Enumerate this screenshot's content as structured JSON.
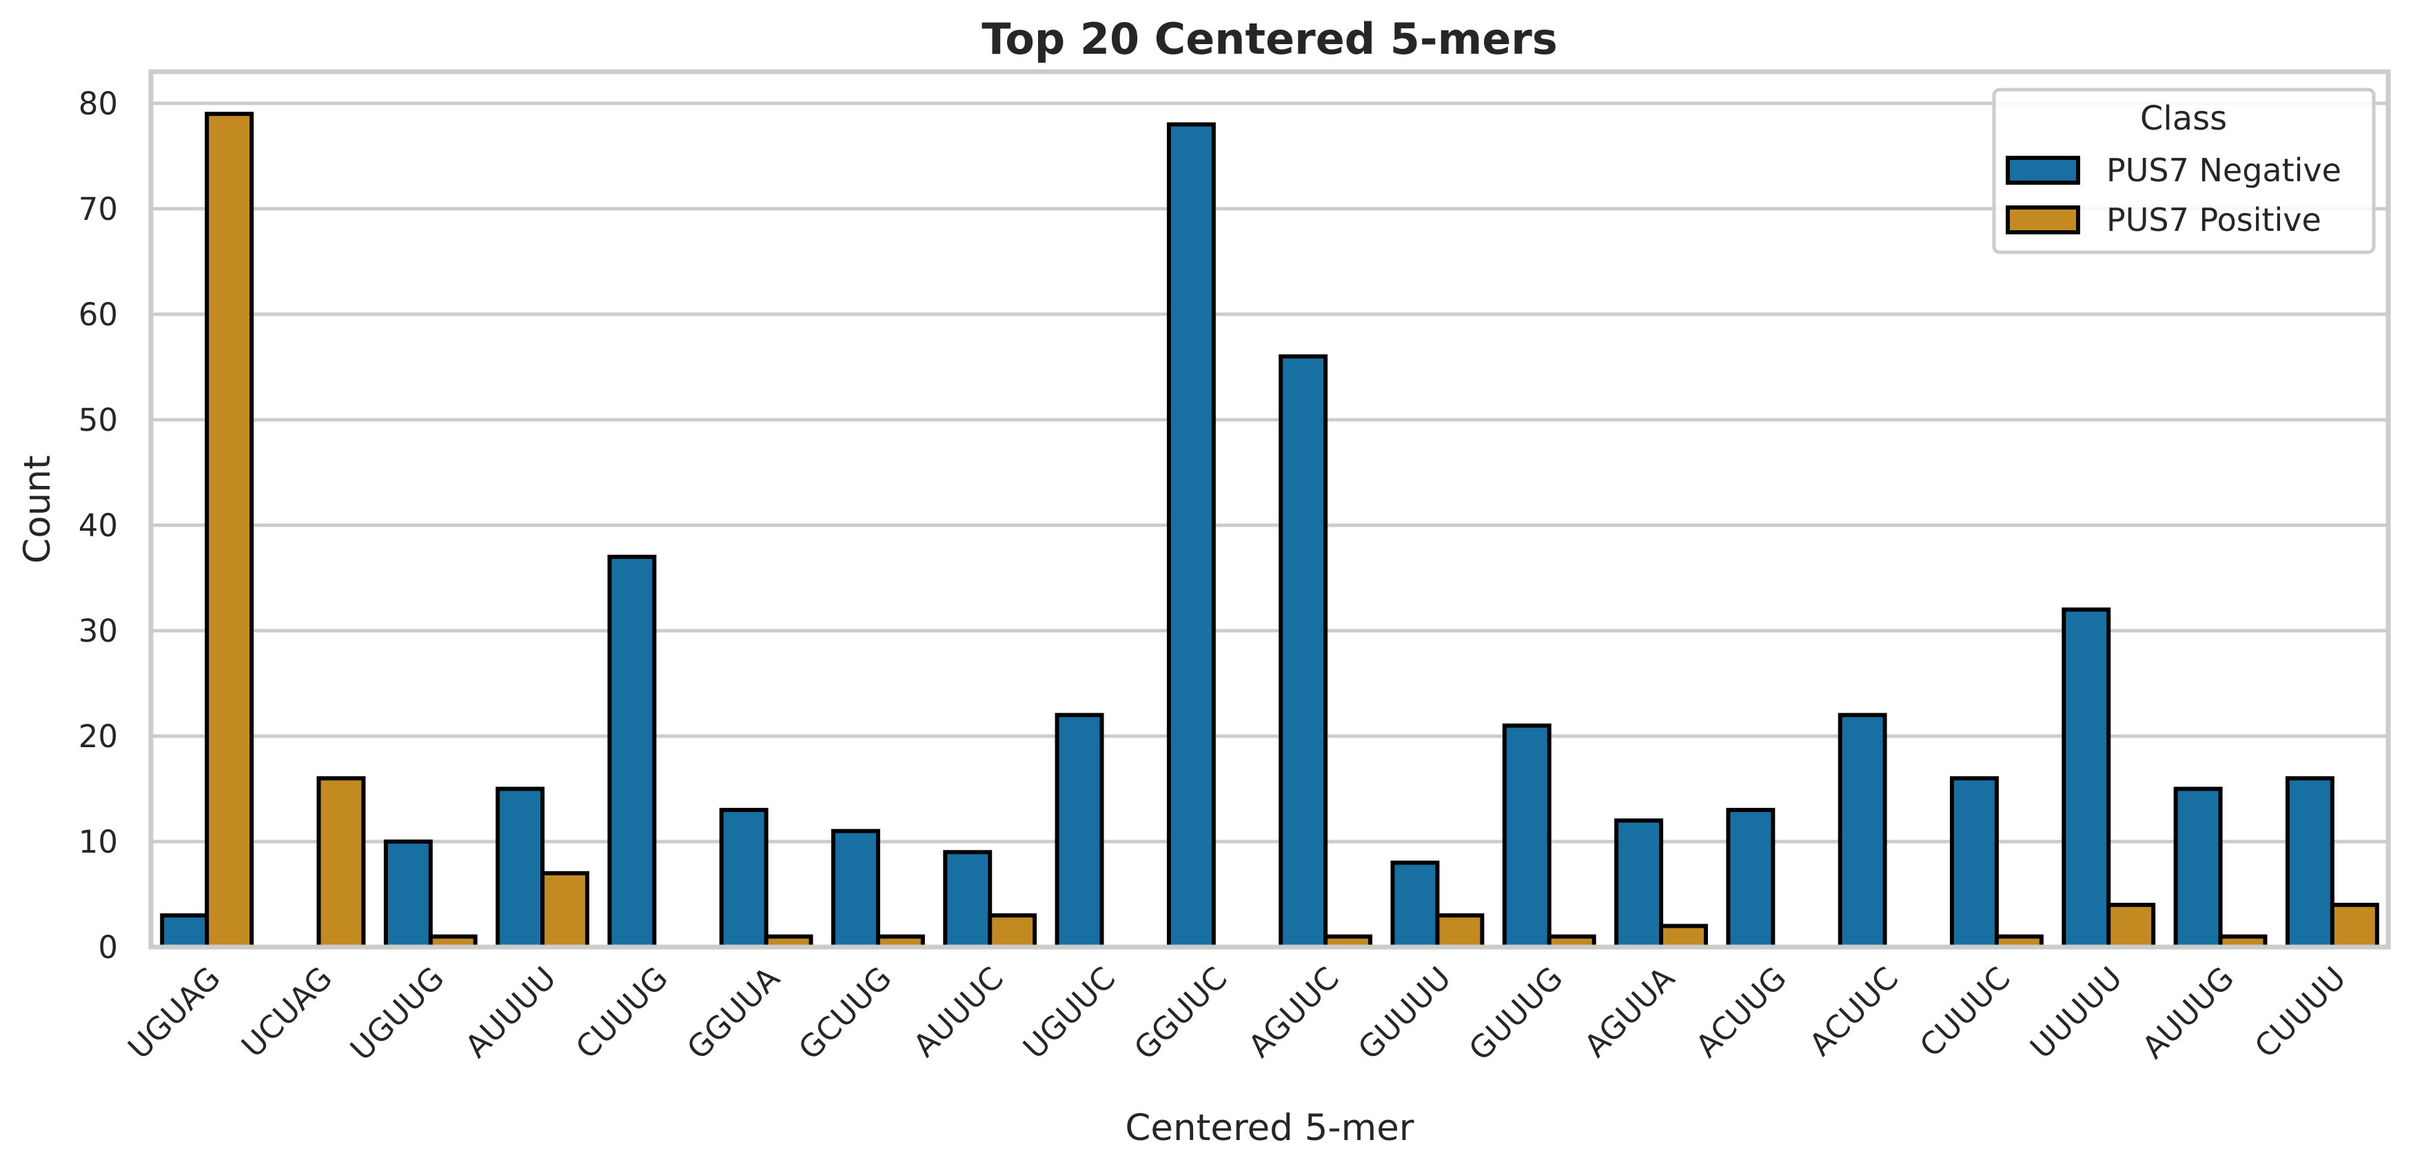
{
  "chart_data": {
    "type": "bar",
    "title": "Top 20 Centered 5-mers",
    "xlabel": "Centered 5-mer",
    "ylabel": "Count",
    "ylim": [
      0,
      83
    ],
    "yticks": [
      0,
      10,
      20,
      30,
      40,
      50,
      60,
      70,
      80
    ],
    "grid": true,
    "legend": {
      "title": "Class",
      "placement": "top-right"
    },
    "categories": [
      "UGUAG",
      "UCUAG",
      "UGUUG",
      "AUUUU",
      "CUUUG",
      "GGUUA",
      "GCUUG",
      "AUUUC",
      "UGUUC",
      "GGUUC",
      "AGUUC",
      "GUUUU",
      "GUUUG",
      "AGUUA",
      "ACUUG",
      "ACUUC",
      "CUUUC",
      "UUUUU",
      "AUUUG",
      "CUUUU"
    ],
    "series": [
      {
        "name": "PUS7 Negative",
        "color": "#1770a1",
        "values": [
          3,
          0,
          10,
          15,
          37,
          13,
          11,
          9,
          22,
          78,
          56,
          8,
          21,
          12,
          13,
          22,
          16,
          32,
          15,
          16
        ]
      },
      {
        "name": "PUS7 Positive",
        "color": "#c48a22",
        "values": [
          79,
          16,
          1,
          7,
          0,
          1,
          1,
          3,
          0,
          0,
          1,
          3,
          1,
          2,
          0,
          0,
          1,
          4,
          1,
          4
        ]
      }
    ]
  }
}
